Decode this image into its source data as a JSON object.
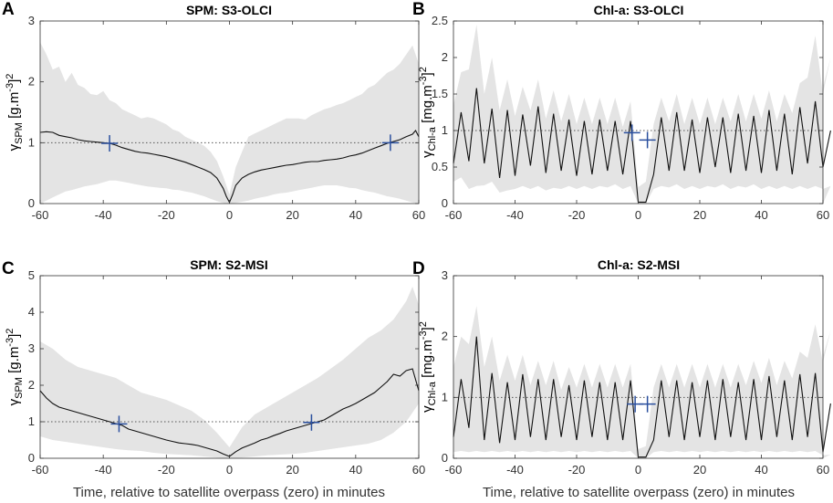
{
  "xlabel": "Time, relative to satellite overpass (zero) in minutes",
  "chart_data": [
    {
      "type": "line",
      "panel": "A",
      "title": "SPM: S3-OLCI",
      "ylabel_symbol": "γ",
      "ylabel_sub": "SPM",
      "ylabel_unit_a": "[g.m",
      "ylabel_unit_b": "-3",
      "ylabel_unit_c": "]",
      "ylabel_unit_d": "2",
      "xlim": [
        -60,
        60
      ],
      "ylim": [
        0,
        3
      ],
      "xticks": [
        -60,
        -40,
        -20,
        0,
        20,
        40,
        60
      ],
      "yticks": [
        0,
        1,
        2,
        3
      ],
      "reference_line": 1,
      "median": {
        "x": [
          -60,
          -58,
          -56,
          -54,
          -52,
          -50,
          -48,
          -46,
          -44,
          -42,
          -40,
          -38,
          -36,
          -34,
          -32,
          -30,
          -28,
          -26,
          -24,
          -22,
          -20,
          -18,
          -16,
          -14,
          -12,
          -10,
          -8,
          -6,
          -4,
          -2,
          -1,
          0,
          1,
          2,
          4,
          6,
          8,
          10,
          12,
          14,
          16,
          18,
          20,
          22,
          24,
          26,
          28,
          30,
          32,
          34,
          36,
          38,
          40,
          42,
          44,
          46,
          48,
          50,
          52,
          54,
          56,
          58,
          59,
          60
        ],
        "y": [
          1.17,
          1.18,
          1.17,
          1.12,
          1.1,
          1.08,
          1.05,
          1.03,
          1.02,
          1.01,
          1.0,
          0.99,
          0.96,
          0.92,
          0.89,
          0.86,
          0.84,
          0.83,
          0.81,
          0.79,
          0.77,
          0.74,
          0.71,
          0.68,
          0.64,
          0.6,
          0.56,
          0.51,
          0.42,
          0.25,
          0.12,
          0.02,
          0.15,
          0.3,
          0.42,
          0.48,
          0.52,
          0.55,
          0.57,
          0.59,
          0.61,
          0.63,
          0.64,
          0.66,
          0.68,
          0.69,
          0.69,
          0.71,
          0.72,
          0.73,
          0.75,
          0.78,
          0.8,
          0.83,
          0.87,
          0.91,
          0.95,
          0.99,
          1.02,
          1.05,
          1.1,
          1.14,
          1.2,
          1.1
        ]
      },
      "band_upper": {
        "x": [
          -60,
          -58,
          -56,
          -54,
          -52,
          -50,
          -48,
          -46,
          -44,
          -42,
          -40,
          -38,
          -36,
          -34,
          -32,
          -30,
          -28,
          -26,
          -24,
          -22,
          -20,
          -18,
          -16,
          -14,
          -12,
          -10,
          -8,
          -6,
          -4,
          -2,
          0,
          2,
          4,
          6,
          8,
          10,
          12,
          14,
          16,
          18,
          20,
          22,
          24,
          26,
          28,
          30,
          32,
          34,
          36,
          38,
          40,
          42,
          44,
          46,
          48,
          50,
          52,
          54,
          56,
          58,
          60
        ],
        "y": [
          2.65,
          2.45,
          2.2,
          2.25,
          2.0,
          2.15,
          1.95,
          1.9,
          1.8,
          1.78,
          1.85,
          1.7,
          1.65,
          1.55,
          1.5,
          1.45,
          1.4,
          1.42,
          1.4,
          1.35,
          1.3,
          1.22,
          1.18,
          1.1,
          1.05,
          1.0,
          0.95,
          0.85,
          0.7,
          0.45,
          0.15,
          0.6,
          0.85,
          1.1,
          1.15,
          1.2,
          1.25,
          1.3,
          1.35,
          1.4,
          1.4,
          1.4,
          1.38,
          1.45,
          1.5,
          1.55,
          1.58,
          1.62,
          1.65,
          1.7,
          1.75,
          1.8,
          1.9,
          1.95,
          2.05,
          2.15,
          2.2,
          2.3,
          2.45,
          2.6,
          2.3
        ]
      },
      "band_lower": {
        "x": [
          -60,
          -58,
          -56,
          -54,
          -52,
          -50,
          -48,
          -46,
          -44,
          -42,
          -40,
          -38,
          -36,
          -34,
          -32,
          -30,
          -28,
          -26,
          -24,
          -22,
          -20,
          -18,
          -16,
          -14,
          -12,
          -10,
          -8,
          -6,
          -4,
          -2,
          0,
          2,
          4,
          6,
          8,
          10,
          12,
          14,
          16,
          18,
          20,
          22,
          24,
          26,
          28,
          30,
          32,
          34,
          36,
          38,
          40,
          42,
          44,
          46,
          48,
          50,
          52,
          54,
          56,
          58,
          60
        ],
        "y": [
          0.0,
          0.05,
          0.1,
          0.15,
          0.2,
          0.22,
          0.25,
          0.28,
          0.3,
          0.32,
          0.35,
          0.38,
          0.38,
          0.36,
          0.34,
          0.32,
          0.3,
          0.28,
          0.27,
          0.26,
          0.25,
          0.23,
          0.22,
          0.2,
          0.18,
          0.15,
          0.12,
          0.08,
          0.04,
          0.01,
          0.0,
          0.01,
          0.03,
          0.05,
          0.08,
          0.1,
          0.12,
          0.15,
          0.17,
          0.18,
          0.2,
          0.22,
          0.24,
          0.26,
          0.28,
          0.3,
          0.3,
          0.3,
          0.28,
          0.26,
          0.25,
          0.22,
          0.2,
          0.18,
          0.15,
          0.12,
          0.1,
          0.08,
          0.05,
          0.02,
          0.0
        ]
      },
      "crosses": [
        {
          "x": -38,
          "y": 0.99
        },
        {
          "x": 51,
          "y": 1.0
        }
      ]
    },
    {
      "type": "line",
      "panel": "B",
      "title": "Chl-a: S3-OLCI",
      "ylabel_symbol": "γ",
      "ylabel_sub": "Chl-a",
      "ylabel_unit_a": "[mg.m",
      "ylabel_unit_b": "-3",
      "ylabel_unit_c": "]",
      "ylabel_unit_d": "2",
      "xlim": [
        -60,
        60
      ],
      "ylim": [
        0,
        2.5
      ],
      "xticks": [
        -60,
        -40,
        -20,
        0,
        20,
        40,
        60
      ],
      "yticks": [
        0,
        0.5,
        1,
        1.5,
        2,
        2.5
      ],
      "reference_line": 1,
      "oscillation": {
        "period": 5,
        "start": -60,
        "peaks": [
          1.25,
          1.58,
          1.3,
          1.28,
          1.22,
          1.33,
          1.23,
          1.15,
          1.13,
          1.15,
          1.13,
          1.13,
          0.02,
          1.18,
          1.25,
          1.15,
          1.18,
          1.18,
          1.23,
          1.2,
          1.28,
          1.23,
          1.32,
          1.4,
          1.0
        ],
        "troughs": [
          0.55,
          0.58,
          0.55,
          0.35,
          0.38,
          0.52,
          0.42,
          0.45,
          0.38,
          0.4,
          0.45,
          0.4,
          0.02,
          0.4,
          0.45,
          0.45,
          0.42,
          0.5,
          0.42,
          0.45,
          0.42,
          0.45,
          0.4,
          0.55,
          0.5
        ],
        "band_hi": [
          1.8,
          2.45,
          2.0,
          1.7,
          1.6,
          1.7,
          1.55,
          1.5,
          1.45,
          1.45,
          1.45,
          1.4,
          0.3,
          1.45,
          1.5,
          1.45,
          1.45,
          1.45,
          1.5,
          1.5,
          1.55,
          1.5,
          1.65,
          2.3,
          2.0
        ],
        "band_lo": [
          0.3,
          0.2,
          0.25,
          0.15,
          0.2,
          0.2,
          0.18,
          0.2,
          0.2,
          0.2,
          0.22,
          0.2,
          0.0,
          0.2,
          0.22,
          0.2,
          0.2,
          0.22,
          0.2,
          0.22,
          0.2,
          0.2,
          0.2,
          0.2,
          0.2
        ]
      },
      "crosses": [
        {
          "x": -2,
          "y": 0.97
        },
        {
          "x": 3,
          "y": 0.87
        }
      ]
    },
    {
      "type": "line",
      "panel": "C",
      "title": "SPM: S2-MSI",
      "ylabel_symbol": "γ",
      "ylabel_sub": "SPM",
      "ylabel_unit_a": "[g.m",
      "ylabel_unit_b": "-3",
      "ylabel_unit_c": "]",
      "ylabel_unit_d": "2",
      "xlim": [
        -60,
        60
      ],
      "ylim": [
        0,
        5
      ],
      "xticks": [
        -60,
        -40,
        -20,
        0,
        20,
        40,
        60
      ],
      "yticks": [
        0,
        1,
        2,
        3,
        4,
        5
      ],
      "reference_line": 1,
      "median": {
        "x": [
          -60,
          -58,
          -56,
          -54,
          -52,
          -50,
          -48,
          -46,
          -44,
          -42,
          -40,
          -38,
          -36,
          -34,
          -32,
          -30,
          -28,
          -26,
          -24,
          -22,
          -20,
          -18,
          -16,
          -14,
          -12,
          -10,
          -8,
          -6,
          -4,
          -2,
          0,
          2,
          4,
          6,
          8,
          10,
          12,
          14,
          16,
          18,
          20,
          22,
          24,
          26,
          28,
          30,
          32,
          34,
          36,
          38,
          40,
          42,
          44,
          46,
          48,
          50,
          52,
          54,
          56,
          58,
          60
        ],
        "y": [
          1.85,
          1.65,
          1.5,
          1.4,
          1.35,
          1.3,
          1.25,
          1.2,
          1.15,
          1.1,
          1.05,
          1.0,
          0.95,
          0.9,
          0.8,
          0.75,
          0.7,
          0.65,
          0.6,
          0.55,
          0.5,
          0.46,
          0.42,
          0.4,
          0.38,
          0.35,
          0.3,
          0.25,
          0.2,
          0.12,
          0.05,
          0.18,
          0.28,
          0.35,
          0.42,
          0.5,
          0.55,
          0.62,
          0.68,
          0.75,
          0.8,
          0.85,
          0.9,
          0.95,
          1.0,
          1.05,
          1.15,
          1.25,
          1.35,
          1.42,
          1.5,
          1.6,
          1.7,
          1.8,
          1.95,
          2.1,
          2.3,
          2.25,
          2.4,
          2.45,
          1.85
        ]
      },
      "band_upper": {
        "x": [
          -60,
          -56,
          -52,
          -48,
          -44,
          -40,
          -36,
          -32,
          -28,
          -24,
          -20,
          -16,
          -12,
          -8,
          -4,
          0,
          4,
          8,
          12,
          16,
          20,
          24,
          28,
          32,
          36,
          40,
          44,
          48,
          52,
          56,
          58,
          60
        ],
        "y": [
          3.2,
          3.0,
          2.7,
          2.5,
          2.4,
          2.3,
          2.2,
          2.0,
          1.8,
          1.7,
          1.6,
          1.45,
          1.3,
          1.05,
          0.7,
          0.3,
          0.85,
          1.2,
          1.4,
          1.6,
          1.8,
          2.0,
          2.2,
          2.45,
          2.7,
          3.0,
          3.3,
          3.5,
          3.8,
          4.3,
          4.7,
          4.2
        ]
      },
      "band_lower": {
        "x": [
          -60,
          -56,
          -52,
          -48,
          -44,
          -40,
          -36,
          -32,
          -28,
          -24,
          -20,
          -16,
          -12,
          -8,
          -4,
          0,
          4,
          8,
          12,
          16,
          20,
          24,
          28,
          32,
          36,
          40,
          44,
          48,
          52,
          56,
          60
        ],
        "y": [
          0.6,
          0.5,
          0.45,
          0.4,
          0.35,
          0.3,
          0.25,
          0.22,
          0.2,
          0.15,
          0.12,
          0.1,
          0.08,
          0.05,
          0.02,
          0.0,
          0.02,
          0.05,
          0.08,
          0.1,
          0.12,
          0.15,
          0.2,
          0.25,
          0.3,
          0.35,
          0.4,
          0.5,
          0.7,
          1.0,
          1.5
        ]
      },
      "crosses": [
        {
          "x": -35,
          "y": 0.94
        },
        {
          "x": 26,
          "y": 0.98
        }
      ]
    },
    {
      "type": "line",
      "panel": "D",
      "title": "Chl-a: S2-MSI",
      "ylabel_symbol": "γ",
      "ylabel_sub": "Chl-a",
      "ylabel_unit_a": "[mg.m",
      "ylabel_unit_b": "-3",
      "ylabel_unit_c": "]",
      "ylabel_unit_d": "2",
      "xlim": [
        -60,
        60
      ],
      "ylim": [
        0,
        3
      ],
      "xticks": [
        -60,
        -40,
        -20,
        0,
        20,
        40,
        60
      ],
      "yticks": [
        0,
        1,
        2,
        3
      ],
      "reference_line": 1,
      "oscillation": {
        "period": 5,
        "start": -60,
        "peaks": [
          1.3,
          2.0,
          1.4,
          1.25,
          1.38,
          1.3,
          1.3,
          1.2,
          1.28,
          1.25,
          1.25,
          1.28,
          0.02,
          1.28,
          1.28,
          1.25,
          1.28,
          1.3,
          1.25,
          1.3,
          1.35,
          1.28,
          1.38,
          1.4,
          0.9
        ],
        "troughs": [
          0.35,
          0.5,
          0.3,
          0.25,
          0.3,
          0.35,
          0.3,
          0.35,
          0.3,
          0.35,
          0.3,
          0.3,
          0.02,
          0.3,
          0.35,
          0.3,
          0.35,
          0.3,
          0.35,
          0.3,
          0.3,
          0.35,
          0.3,
          0.35,
          0.1
        ],
        "band_hi": [
          2.0,
          2.5,
          2.0,
          1.7,
          1.7,
          1.6,
          1.6,
          1.5,
          1.55,
          1.55,
          1.55,
          1.55,
          0.2,
          1.55,
          1.55,
          1.55,
          1.55,
          1.55,
          1.55,
          1.6,
          1.65,
          1.6,
          1.75,
          2.2,
          2.1
        ],
        "band_lo": [
          0.1,
          0.1,
          0.1,
          0.1,
          0.1,
          0.1,
          0.1,
          0.1,
          0.1,
          0.1,
          0.1,
          0.1,
          0.0,
          0.1,
          0.1,
          0.1,
          0.1,
          0.1,
          0.1,
          0.1,
          0.1,
          0.1,
          0.1,
          0.1,
          0.05
        ]
      },
      "crosses": [
        {
          "x": -1,
          "y": 0.89
        },
        {
          "x": 3,
          "y": 0.89
        }
      ]
    }
  ]
}
